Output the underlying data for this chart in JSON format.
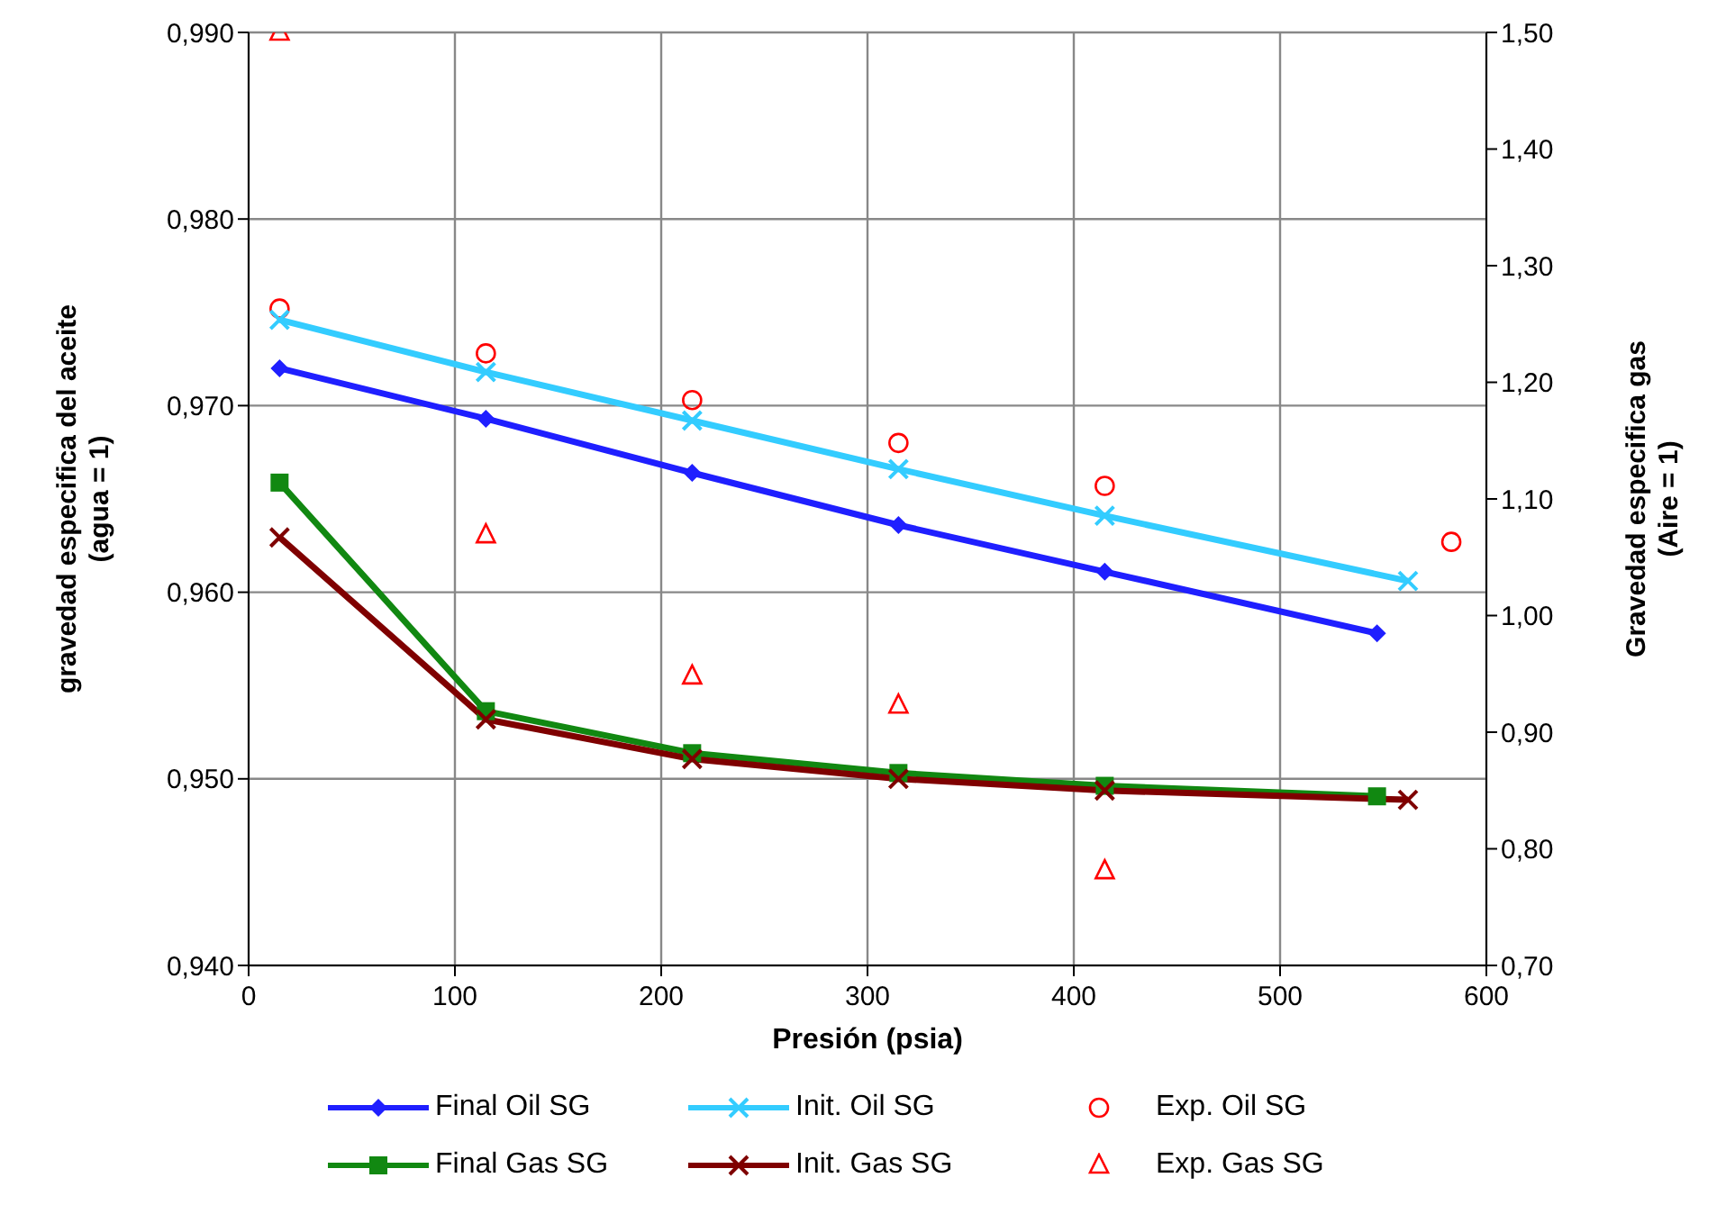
{
  "chart_data": {
    "type": "line",
    "xlabel": "Presión (psia)",
    "ylabel": "gravedad  especifica del aceite\n(agua = 1)",
    "y2label": "Gravedad especifica gas\n(Aire = 1)",
    "xlim": [
      0,
      600
    ],
    "xticks": [
      0,
      100,
      200,
      300,
      400,
      500,
      600
    ],
    "ylim": [
      0.94,
      0.99
    ],
    "yticks": [
      {
        "value": 0.94,
        "label": "0,940"
      },
      {
        "value": 0.95,
        "label": "0,950"
      },
      {
        "value": 0.96,
        "label": "0,960"
      },
      {
        "value": 0.97,
        "label": "0,970"
      },
      {
        "value": 0.98,
        "label": "0,980"
      },
      {
        "value": 0.99,
        "label": "0,990"
      }
    ],
    "y2lim": [
      0.7,
      1.5
    ],
    "y2ticks": [
      {
        "value": 0.7,
        "label": "0,70"
      },
      {
        "value": 0.8,
        "label": "0,80"
      },
      {
        "value": 0.9,
        "label": "0,90"
      },
      {
        "value": 1.0,
        "label": "1,00"
      },
      {
        "value": 1.1,
        "label": "1,10"
      },
      {
        "value": 1.2,
        "label": "1,20"
      },
      {
        "value": 1.3,
        "label": "1,30"
      },
      {
        "value": 1.4,
        "label": "1,40"
      },
      {
        "value": 1.5,
        "label": "1,50"
      }
    ],
    "grid": true,
    "legend": "bottom",
    "series": [
      {
        "name": "Final Oil SG",
        "type": "line",
        "color": "#1f1fff",
        "marker": "diamond",
        "x": [
          15,
          115,
          215,
          315,
          415,
          547
        ],
        "values": [
          0.972,
          0.9693,
          0.9664,
          0.9636,
          0.9611,
          0.9578
        ]
      },
      {
        "name": "Init. Oil SG",
        "type": "line",
        "color": "#33ccff",
        "marker": "cross",
        "x": [
          15,
          115,
          215,
          315,
          415,
          562
        ],
        "values": [
          0.9746,
          0.9718,
          0.9692,
          0.9666,
          0.9641,
          0.9606
        ]
      },
      {
        "name": "Exp. Oil SG",
        "type": "scatter",
        "color": "#ff0000",
        "marker": "circle",
        "x": [
          15,
          115,
          215,
          315,
          415,
          583
        ],
        "values": [
          0.9752,
          0.9728,
          0.9703,
          0.968,
          0.9657,
          0.9627
        ]
      },
      {
        "name": "Final Gas SG",
        "type": "line",
        "axis": "y2",
        "color": "#118811",
        "marker": "square",
        "x": [
          15,
          115,
          215,
          315,
          415,
          547
        ],
        "values": [
          1.114,
          0.918,
          0.882,
          0.865,
          0.854,
          0.845
        ]
      },
      {
        "name": "Init. Gas SG",
        "type": "line",
        "axis": "y2",
        "color": "#7f0000",
        "marker": "cross",
        "x": [
          15,
          115,
          215,
          315,
          415,
          562
        ],
        "values": [
          1.067,
          0.911,
          0.877,
          0.86,
          0.85,
          0.842
        ]
      },
      {
        "name": "Exp. Gas SG",
        "type": "scatter",
        "axis": "y2",
        "color": "#ff0000",
        "marker": "triangle",
        "x": [
          15,
          115,
          215,
          315,
          415
        ],
        "values": [
          1.5,
          1.069,
          0.948,
          0.923,
          0.781
        ]
      }
    ]
  }
}
